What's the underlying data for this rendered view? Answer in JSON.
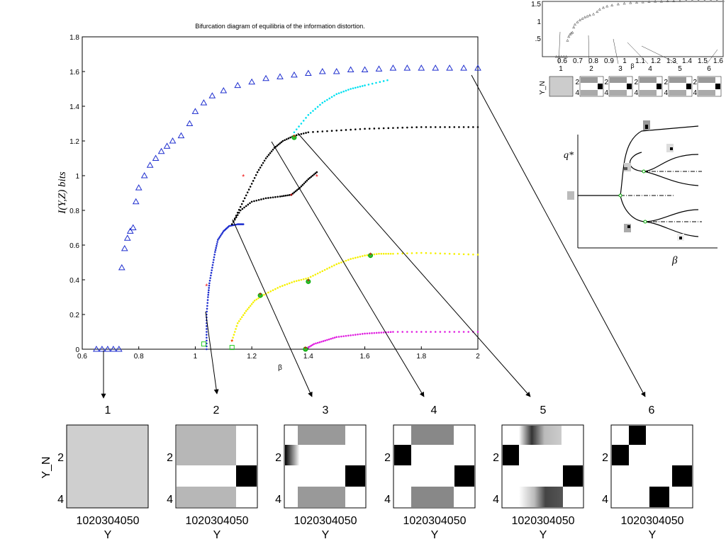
{
  "chart_data": {
    "type": "scatter",
    "title": "Bifurcation diagram of equilibria of the information distortion.",
    "xlabel": "β",
    "ylabel": "I(Y,Z) bits",
    "xlim": [
      0.6,
      2.0
    ],
    "ylim": [
      0,
      1.8
    ],
    "x_ticks": [
      "0.6",
      "0.8",
      "1",
      "1.2",
      "1.4",
      "1.6",
      "1.8",
      "2"
    ],
    "y_ticks": [
      "0",
      "0.2",
      "0.4",
      "0.6",
      "0.8",
      "1",
      "1.2",
      "1.4",
      "1.6",
      "1.8"
    ],
    "series": [
      {
        "color": "#1f2fcf",
        "marker": "triangle",
        "points": [
          [
            0.65,
            0
          ],
          [
            0.67,
            0
          ],
          [
            0.69,
            0
          ],
          [
            0.71,
            0
          ],
          [
            0.73,
            0
          ],
          [
            0.74,
            0.47
          ],
          [
            0.75,
            0.58
          ],
          [
            0.76,
            0.64
          ],
          [
            0.77,
            0.68
          ],
          [
            0.78,
            0.7
          ],
          [
            0.79,
            0.85
          ],
          [
            0.8,
            0.93
          ],
          [
            0.82,
            1.0
          ],
          [
            0.84,
            1.06
          ],
          [
            0.86,
            1.1
          ],
          [
            0.88,
            1.14
          ],
          [
            0.9,
            1.17
          ],
          [
            0.92,
            1.2
          ],
          [
            0.95,
            1.23
          ],
          [
            0.98,
            1.3
          ],
          [
            1.0,
            1.37
          ],
          [
            1.03,
            1.42
          ],
          [
            1.06,
            1.46
          ],
          [
            1.1,
            1.49
          ],
          [
            1.15,
            1.52
          ],
          [
            1.2,
            1.54
          ],
          [
            1.25,
            1.56
          ],
          [
            1.3,
            1.57
          ],
          [
            1.35,
            1.58
          ],
          [
            1.4,
            1.59
          ],
          [
            1.45,
            1.6
          ],
          [
            1.5,
            1.6
          ],
          [
            1.55,
            1.61
          ],
          [
            1.6,
            1.61
          ],
          [
            1.65,
            1.615
          ],
          [
            1.7,
            1.62
          ],
          [
            1.75,
            1.62
          ],
          [
            1.8,
            1.62
          ],
          [
            1.85,
            1.62
          ],
          [
            1.9,
            1.62
          ],
          [
            1.95,
            1.62
          ],
          [
            2.0,
            1.62
          ]
        ]
      },
      {
        "color": "#1f2fcf",
        "marker": "dot",
        "points": [
          [
            1.04,
            0.0
          ],
          [
            1.04,
            0.1
          ],
          [
            1.04,
            0.2
          ],
          [
            1.045,
            0.3
          ],
          [
            1.05,
            0.38
          ],
          [
            1.06,
            0.47
          ],
          [
            1.07,
            0.56
          ],
          [
            1.08,
            0.63
          ],
          [
            1.1,
            0.68
          ],
          [
            1.12,
            0.71
          ],
          [
            1.15,
            0.72
          ],
          [
            1.17,
            0.72
          ]
        ]
      },
      {
        "color": "#000000",
        "marker": "dot",
        "points": [
          [
            1.13,
            0.72
          ],
          [
            1.16,
            0.82
          ],
          [
            1.19,
            0.92
          ],
          [
            1.22,
            1.02
          ],
          [
            1.25,
            1.1
          ],
          [
            1.28,
            1.16
          ],
          [
            1.31,
            1.2
          ],
          [
            1.35,
            1.23
          ],
          [
            1.4,
            1.25
          ],
          [
            1.5,
            1.26
          ],
          [
            1.6,
            1.27
          ],
          [
            1.7,
            1.275
          ],
          [
            1.8,
            1.28
          ],
          [
            1.9,
            1.28
          ],
          [
            2.0,
            1.28
          ]
        ]
      },
      {
        "color": "#000000",
        "marker": "dot",
        "points": [
          [
            1.13,
            0.72
          ],
          [
            1.16,
            0.8
          ],
          [
            1.2,
            0.85
          ],
          [
            1.25,
            0.87
          ],
          [
            1.3,
            0.88
          ],
          [
            1.34,
            0.89
          ],
          [
            1.37,
            0.93
          ],
          [
            1.4,
            0.98
          ],
          [
            1.43,
            1.02
          ]
        ]
      },
      {
        "color": "#00e0f0",
        "marker": "dot",
        "points": [
          [
            1.35,
            1.25
          ],
          [
            1.4,
            1.35
          ],
          [
            1.45,
            1.42
          ],
          [
            1.5,
            1.47
          ],
          [
            1.55,
            1.5
          ],
          [
            1.6,
            1.52
          ],
          [
            1.68,
            1.55
          ]
        ]
      },
      {
        "color": "#f5f000",
        "marker": "dot",
        "points": [
          [
            1.13,
            0.05
          ],
          [
            1.15,
            0.15
          ],
          [
            1.18,
            0.22
          ],
          [
            1.21,
            0.28
          ],
          [
            1.25,
            0.32
          ],
          [
            1.3,
            0.36
          ],
          [
            1.35,
            0.39
          ],
          [
            1.4,
            0.41
          ],
          [
            1.45,
            0.45
          ],
          [
            1.5,
            0.49
          ],
          [
            1.55,
            0.52
          ],
          [
            1.6,
            0.54
          ],
          [
            1.65,
            0.55
          ],
          [
            1.7,
            0.55
          ],
          [
            1.8,
            0.555
          ],
          [
            1.9,
            0.55
          ],
          [
            2.0,
            0.545
          ]
        ]
      },
      {
        "color": "#e020e0",
        "marker": "dot",
        "points": [
          [
            1.39,
            0.0
          ],
          [
            1.42,
            0.03
          ],
          [
            1.46,
            0.05
          ],
          [
            1.5,
            0.07
          ],
          [
            1.55,
            0.08
          ],
          [
            1.6,
            0.09
          ],
          [
            1.65,
            0.095
          ],
          [
            1.7,
            0.1
          ],
          [
            1.8,
            0.1
          ],
          [
            1.9,
            0.1
          ],
          [
            2.0,
            0.1
          ]
        ]
      }
    ],
    "bifurcation_markers": [
      [
        1.04,
        0.37
      ],
      [
        1.17,
        1.0
      ],
      [
        1.34,
        0.89
      ],
      [
        1.43,
        1.0
      ],
      [
        1.13,
        0.05
      ]
    ],
    "green_markers": [
      [
        1.35,
        1.22
      ],
      [
        1.23,
        0.31
      ],
      [
        1.4,
        0.39
      ],
      [
        1.62,
        0.54
      ],
      [
        1.39,
        0.0
      ]
    ],
    "square_markers": [
      [
        1.03,
        0.03
      ],
      [
        1.13,
        0.01
      ]
    ]
  },
  "panels": {
    "labels": [
      "1",
      "2",
      "3",
      "4",
      "5",
      "6"
    ],
    "y_axis_label": "Y_N",
    "y_tick_2": "2",
    "y_tick_4": "4",
    "x_tick_text": "1020304050",
    "x_axis_label": "Y"
  },
  "inset": {
    "y_ticks": [
      "1.5",
      "1",
      ".5"
    ],
    "x_ticks": [
      "0.6",
      "0.7",
      "0.8",
      "0.9",
      "1",
      "1.1",
      "1.2",
      "1.3",
      "1.4",
      "1.5",
      "1.6"
    ],
    "x_label": "β",
    "labels": [
      "1",
      "2",
      "3",
      "4",
      "5",
      "6"
    ],
    "panel_y_label": "Y_N",
    "panel_tick_2": "2",
    "panel_tick_4": "4"
  },
  "schematic": {
    "y_label": "q*",
    "x_label": "β"
  }
}
